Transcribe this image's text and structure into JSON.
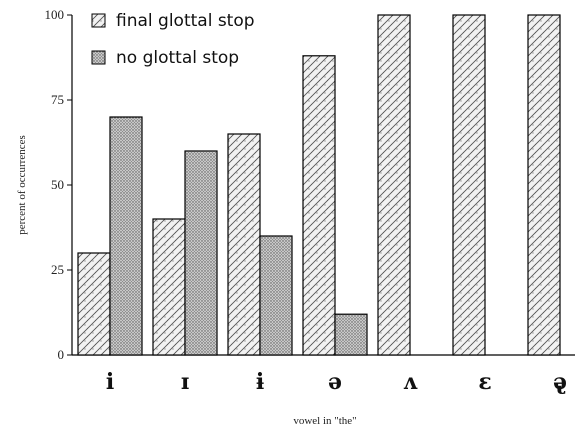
{
  "chart_data": {
    "type": "bar",
    "categories": [
      "i",
      "ɪ",
      "ɨ",
      "ə",
      "ʌ",
      "ɛ",
      "ə̢"
    ],
    "series": [
      {
        "name": "final glottal stop",
        "values": [
          30,
          40,
          65,
          88,
          100,
          100,
          100
        ],
        "pattern": "hatch"
      },
      {
        "name": "no glottal stop",
        "values": [
          70,
          60,
          35,
          12,
          null,
          null,
          null
        ],
        "pattern": "dots"
      }
    ],
    "xlabel": "vowel in \"the\"",
    "ylabel": "percent of occurrences",
    "ylim": [
      0,
      100
    ],
    "yticks": [
      "0",
      "25",
      "50",
      "75",
      "100"
    ],
    "legend": "top-left",
    "grid": false
  }
}
